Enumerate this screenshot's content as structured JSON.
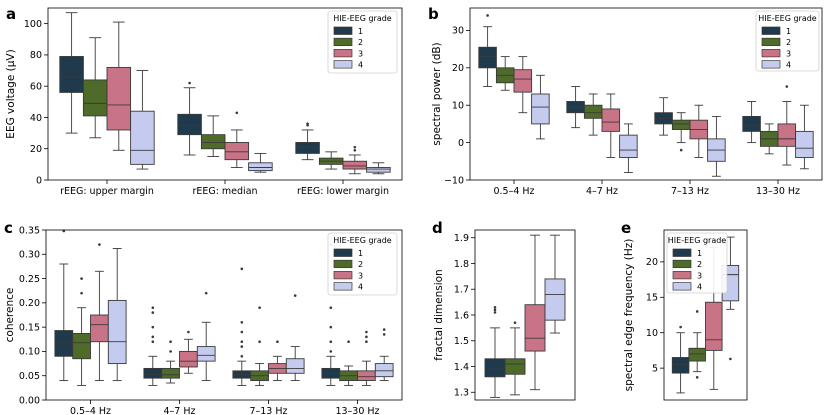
{
  "colors": {
    "1": "#1e3a4c",
    "2": "#4e6b2a",
    "3": "#c97386",
    "4": "#c5cbef"
  },
  "chart_data": [
    {
      "id": "a",
      "panel_letter": "a",
      "type": "box",
      "ylabel": "EEG voltage (μV)",
      "ylim": [
        0,
        110
      ],
      "yticks": [
        "0",
        "20",
        "40",
        "60",
        "80",
        "100"
      ],
      "ytick_values": [
        0,
        20,
        40,
        60,
        80,
        100
      ],
      "categories": [
        "rEEG: upper margin",
        "rEEG: median",
        "rEEG: lower margin"
      ],
      "legend": {
        "title": "HIE-EEG grade",
        "labels": [
          "1",
          "2",
          "3",
          "4"
        ],
        "position": "top-right"
      },
      "series": [
        {
          "name": "1",
          "boxes": [
            {
              "whislo": 30,
              "q1": 56,
              "med": 66,
              "q3": 79,
              "whishi": 107,
              "fliers": []
            },
            {
              "whislo": 16,
              "q1": 29,
              "med": 35,
              "q3": 42,
              "whishi": 59,
              "fliers": [
                62
              ]
            },
            {
              "whislo": 13,
              "q1": 17,
              "med": 21,
              "q3": 24,
              "whishi": 32,
              "fliers": [
                35,
                36
              ]
            }
          ]
        },
        {
          "name": "2",
          "boxes": [
            {
              "whislo": 27,
              "q1": 41,
              "med": 49,
              "q3": 64,
              "whishi": 91,
              "fliers": []
            },
            {
              "whislo": 15,
              "q1": 20,
              "med": 24,
              "q3": 29,
              "whishi": 41,
              "fliers": []
            },
            {
              "whislo": 7,
              "q1": 10,
              "med": 12,
              "q3": 14,
              "whishi": 18,
              "fliers": []
            }
          ]
        },
        {
          "name": "3",
          "boxes": [
            {
              "whislo": 19,
              "q1": 32,
              "med": 48,
              "q3": 72,
              "whishi": 101,
              "fliers": []
            },
            {
              "whislo": 8,
              "q1": 13,
              "med": 18,
              "q3": 24,
              "whishi": 32,
              "fliers": [
                43
              ]
            },
            {
              "whislo": 4,
              "q1": 7,
              "med": 9,
              "q3": 12,
              "whishi": 16,
              "fliers": [
                19,
                21
              ]
            }
          ]
        },
        {
          "name": "4",
          "boxes": [
            {
              "whislo": 7,
              "q1": 10,
              "med": 19,
              "q3": 44,
              "whishi": 70,
              "fliers": []
            },
            {
              "whislo": 5,
              "q1": 6,
              "med": 8,
              "q3": 11,
              "whishi": 17,
              "fliers": []
            },
            {
              "whislo": 4,
              "q1": 5,
              "med": 7,
              "q3": 8,
              "whishi": 11,
              "fliers": []
            }
          ]
        }
      ]
    },
    {
      "id": "b",
      "panel_letter": "b",
      "type": "box",
      "ylabel": "spectral power (dB)",
      "ylim": [
        -10,
        36
      ],
      "yticks": [
        "−10",
        "0",
        "10",
        "20",
        "30"
      ],
      "ytick_values": [
        -10,
        0,
        10,
        20,
        30
      ],
      "categories": [
        "0.5–4 Hz",
        "4–7 Hz",
        "7–13 Hz",
        "13–30 Hz"
      ],
      "legend": {
        "title": "HIE-EEG grade",
        "labels": [
          "1",
          "2",
          "3",
          "4"
        ],
        "position": "top-right"
      },
      "series": [
        {
          "name": "1",
          "boxes": [
            {
              "whislo": 15,
              "q1": 20,
              "med": 23,
              "q3": 25.5,
              "whishi": 31,
              "fliers": [
                34
              ]
            },
            {
              "whislo": 4,
              "q1": 8,
              "med": 9.5,
              "q3": 11,
              "whishi": 15,
              "fliers": []
            },
            {
              "whislo": 2,
              "q1": 5,
              "med": 6.5,
              "q3": 8,
              "whishi": 12,
              "fliers": []
            },
            {
              "whislo": 0,
              "q1": 3,
              "med": 4.5,
              "q3": 7,
              "whishi": 11,
              "fliers": []
            }
          ]
        },
        {
          "name": "2",
          "boxes": [
            {
              "whislo": 14,
              "q1": 16,
              "med": 18,
              "q3": 20,
              "whishi": 23,
              "fliers": []
            },
            {
              "whislo": 2,
              "q1": 6.5,
              "med": 8,
              "q3": 10,
              "whishi": 13,
              "fliers": []
            },
            {
              "whislo": 0,
              "q1": 3.5,
              "med": 5,
              "q3": 6,
              "whishi": 8,
              "fliers": [
                -2
              ]
            },
            {
              "whislo": -3,
              "q1": -1,
              "med": 1,
              "q3": 3,
              "whishi": 5,
              "fliers": []
            }
          ]
        },
        {
          "name": "3",
          "boxes": [
            {
              "whislo": 8,
              "q1": 13.5,
              "med": 17,
              "q3": 19.5,
              "whishi": 23,
              "fliers": []
            },
            {
              "whislo": -4,
              "q1": 3,
              "med": 5.5,
              "q3": 9,
              "whishi": 13,
              "fliers": []
            },
            {
              "whislo": -4,
              "q1": 1,
              "med": 3.5,
              "q3": 6,
              "whishi": 10,
              "fliers": []
            },
            {
              "whislo": -6,
              "q1": -1,
              "med": 1,
              "q3": 5,
              "whishi": 11,
              "fliers": [
                15
              ]
            }
          ]
        },
        {
          "name": "4",
          "boxes": [
            {
              "whislo": 1,
              "q1": 5,
              "med": 9.5,
              "q3": 13,
              "whishi": 18,
              "fliers": []
            },
            {
              "whislo": -8,
              "q1": -4,
              "med": -2,
              "q3": 2,
              "whishi": 5,
              "fliers": []
            },
            {
              "whislo": -9,
              "q1": -5,
              "med": -2,
              "q3": 1,
              "whishi": 7,
              "fliers": []
            },
            {
              "whislo": -7,
              "q1": -4,
              "med": -1.5,
              "q3": 3,
              "whishi": 10,
              "fliers": []
            }
          ]
        }
      ]
    },
    {
      "id": "c",
      "panel_letter": "c",
      "type": "box",
      "ylabel": "coherence",
      "ylim": [
        0,
        0.35
      ],
      "yticks": [
        "0.00",
        "0.05",
        "0.10",
        "0.15",
        "0.20",
        "0.25",
        "0.30",
        "0.35"
      ],
      "ytick_values": [
        0,
        0.05,
        0.1,
        0.15,
        0.2,
        0.25,
        0.3,
        0.35
      ],
      "categories": [
        "0.5–4 Hz",
        "4–7 Hz",
        "7–13 Hz",
        "13–30 Hz"
      ],
      "legend": {
        "title": "HIE-EEG grade",
        "labels": [
          "1",
          "2",
          "3",
          "4"
        ],
        "position": "top-right"
      },
      "series": [
        {
          "name": "1",
          "boxes": [
            {
              "whislo": 0.04,
              "q1": 0.09,
              "med": 0.118,
              "q3": 0.143,
              "whishi": 0.28,
              "fliers": [
                0.348
              ]
            },
            {
              "whislo": 0.03,
              "q1": 0.045,
              "med": 0.053,
              "q3": 0.065,
              "whishi": 0.09,
              "fliers": [
                0.12,
                0.13,
                0.15,
                0.18,
                0.19
              ]
            },
            {
              "whislo": 0.03,
              "q1": 0.045,
              "med": 0.052,
              "q3": 0.06,
              "whishi": 0.08,
              "fliers": [
                0.09,
                0.11,
                0.12,
                0.14,
                0.16,
                0.27
              ]
            },
            {
              "whislo": 0.03,
              "q1": 0.045,
              "med": 0.055,
              "q3": 0.065,
              "whishi": 0.09,
              "fliers": [
                0.1,
                0.12,
                0.15,
                0.19,
                0.32
              ]
            }
          ]
        },
        {
          "name": "2",
          "boxes": [
            {
              "whislo": 0.03,
              "q1": 0.085,
              "med": 0.118,
              "q3": 0.137,
              "whishi": 0.19,
              "fliers": [
                0.22,
                0.25
              ]
            },
            {
              "whislo": 0.035,
              "q1": 0.045,
              "med": 0.052,
              "q3": 0.065,
              "whishi": 0.08,
              "fliers": [
                0.1,
                0.12
              ]
            },
            {
              "whislo": 0.03,
              "q1": 0.04,
              "med": 0.05,
              "q3": 0.06,
              "whishi": 0.075,
              "fliers": [
                0.12,
                0.19
              ]
            },
            {
              "whislo": 0.03,
              "q1": 0.04,
              "med": 0.05,
              "q3": 0.06,
              "whishi": 0.07,
              "fliers": [
                0.12
              ]
            }
          ]
        },
        {
          "name": "3",
          "boxes": [
            {
              "whislo": 0.04,
              "q1": 0.12,
              "med": 0.155,
              "q3": 0.175,
              "whishi": 0.265,
              "fliers": [
                0.32
              ]
            },
            {
              "whislo": 0.055,
              "q1": 0.068,
              "med": 0.08,
              "q3": 0.1,
              "whishi": 0.125,
              "fliers": [
                0.14
              ]
            },
            {
              "whislo": 0.04,
              "q1": 0.055,
              "med": 0.065,
              "q3": 0.075,
              "whishi": 0.09,
              "fliers": [
                0.12
              ]
            },
            {
              "whislo": 0.03,
              "q1": 0.04,
              "med": 0.048,
              "q3": 0.06,
              "whishi": 0.08,
              "fliers": [
                0.12,
                0.13,
                0.14
              ]
            }
          ]
        },
        {
          "name": "4",
          "boxes": [
            {
              "whislo": 0.04,
              "q1": 0.075,
              "med": 0.12,
              "q3": 0.205,
              "whishi": 0.312,
              "fliers": []
            },
            {
              "whislo": 0.04,
              "q1": 0.08,
              "med": 0.092,
              "q3": 0.11,
              "whishi": 0.16,
              "fliers": [
                0.22
              ]
            },
            {
              "whislo": 0.04,
              "q1": 0.055,
              "med": 0.065,
              "q3": 0.085,
              "whishi": 0.11,
              "fliers": [
                0.215
              ]
            },
            {
              "whislo": 0.04,
              "q1": 0.048,
              "med": 0.06,
              "q3": 0.075,
              "whishi": 0.09,
              "fliers": [
                0.135,
                0.145
              ]
            }
          ]
        }
      ]
    },
    {
      "id": "d",
      "panel_letter": "d",
      "type": "box",
      "ylabel": "fractal dimension",
      "ylim": [
        1.27,
        1.93
      ],
      "yticks": [
        "1.3",
        "1.4",
        "1.5",
        "1.6",
        "1.7",
        "1.8",
        "1.9"
      ],
      "ytick_values": [
        1.3,
        1.4,
        1.5,
        1.6,
        1.7,
        1.8,
        1.9
      ],
      "categories": [
        ""
      ],
      "legend": null,
      "series": [
        {
          "name": "1",
          "boxes": [
            {
              "whislo": 1.28,
              "q1": 1.36,
              "med": 1.39,
              "q3": 1.43,
              "whishi": 1.55,
              "fliers": [
                1.61,
                1.62,
                1.63
              ]
            }
          ]
        },
        {
          "name": "2",
          "boxes": [
            {
              "whislo": 1.29,
              "q1": 1.37,
              "med": 1.41,
              "q3": 1.43,
              "whishi": 1.55,
              "fliers": [
                1.57
              ]
            }
          ]
        },
        {
          "name": "3",
          "boxes": [
            {
              "whislo": 1.31,
              "q1": 1.46,
              "med": 1.51,
              "q3": 1.64,
              "whishi": 1.91,
              "fliers": []
            }
          ]
        },
        {
          "name": "4",
          "boxes": [
            {
              "whislo": 1.53,
              "q1": 1.58,
              "med": 1.68,
              "q3": 1.74,
              "whishi": 1.91,
              "fliers": []
            }
          ]
        }
      ]
    },
    {
      "id": "e",
      "panel_letter": "e",
      "type": "box",
      "ylabel": "spectral edge frequency (Hz)",
      "ylim": [
        0.5,
        24.5
      ],
      "yticks": [
        "5",
        "10",
        "15",
        "20"
      ],
      "ytick_values": [
        5,
        10,
        15,
        20
      ],
      "categories": [
        ""
      ],
      "legend": {
        "title": "HIE-EEG grade",
        "labels": [
          "1",
          "2",
          "3",
          "4"
        ],
        "position": "top-left"
      },
      "series": [
        {
          "name": "1",
          "boxes": [
            {
              "whislo": 1.5,
              "q1": 4.3,
              "med": 5.5,
              "q3": 6.5,
              "whishi": 10,
              "fliers": [
                10.8
              ]
            }
          ]
        },
        {
          "name": "2",
          "boxes": [
            {
              "whislo": 4.5,
              "q1": 6,
              "med": 7,
              "q3": 7.8,
              "whishi": 10,
              "fliers": [
                13,
                3.7
              ]
            }
          ]
        },
        {
          "name": "3",
          "boxes": [
            {
              "whislo": 2,
              "q1": 7.5,
              "med": 9,
              "q3": 14.3,
              "whishi": 22,
              "fliers": []
            }
          ]
        },
        {
          "name": "4",
          "boxes": [
            {
              "whislo": 13.3,
              "q1": 14.5,
              "med": 18.2,
              "q3": 19.5,
              "whishi": 23.5,
              "fliers": [
                6.3
              ]
            }
          ]
        }
      ]
    }
  ]
}
